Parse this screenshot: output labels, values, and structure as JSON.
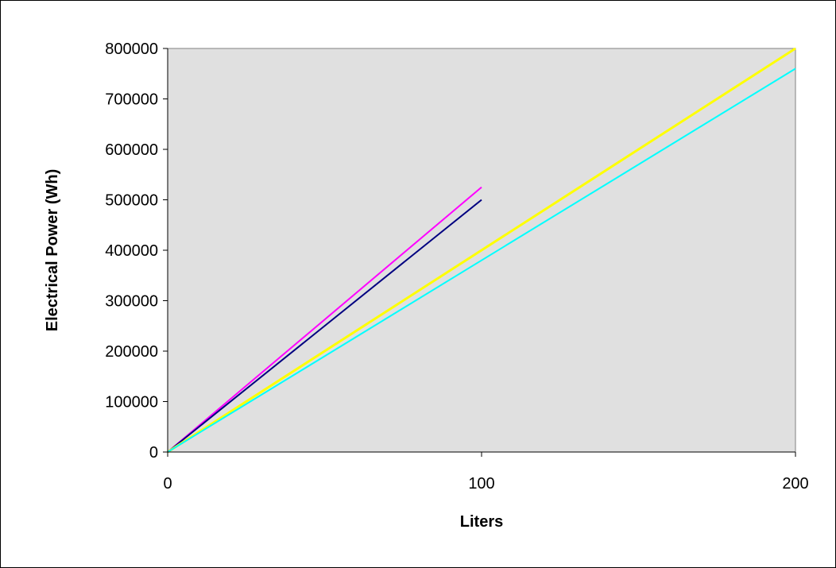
{
  "chart_data": {
    "type": "line",
    "title": "",
    "xlabel": "Liters",
    "ylabel": "Electrical Power (Wh)",
    "xlim": [
      0,
      200
    ],
    "ylim": [
      0,
      800000
    ],
    "x_ticks": [
      0,
      100,
      200
    ],
    "x_tick_labels": [
      "0",
      "100",
      "200"
    ],
    "y_ticks": [
      0,
      100000,
      200000,
      300000,
      400000,
      500000,
      600000,
      700000,
      800000
    ],
    "y_tick_labels": [
      "0",
      "100000",
      "200000",
      "300000",
      "400000",
      "500000",
      "600000",
      "700000",
      "800000"
    ],
    "grid": false,
    "legend": "none",
    "plot_background": "#e0e0e0",
    "series": [
      {
        "color": "#ff00ff",
        "x": [
          0,
          100
        ],
        "y": [
          0,
          525000
        ]
      },
      {
        "color": "#000080",
        "x": [
          0,
          100
        ],
        "y": [
          0,
          500000
        ]
      },
      {
        "color": "#ffff00",
        "x": [
          0,
          200
        ],
        "y": [
          0,
          800000
        ]
      },
      {
        "color": "#00ffff",
        "x": [
          0,
          200
        ],
        "y": [
          0,
          760000
        ]
      }
    ]
  }
}
